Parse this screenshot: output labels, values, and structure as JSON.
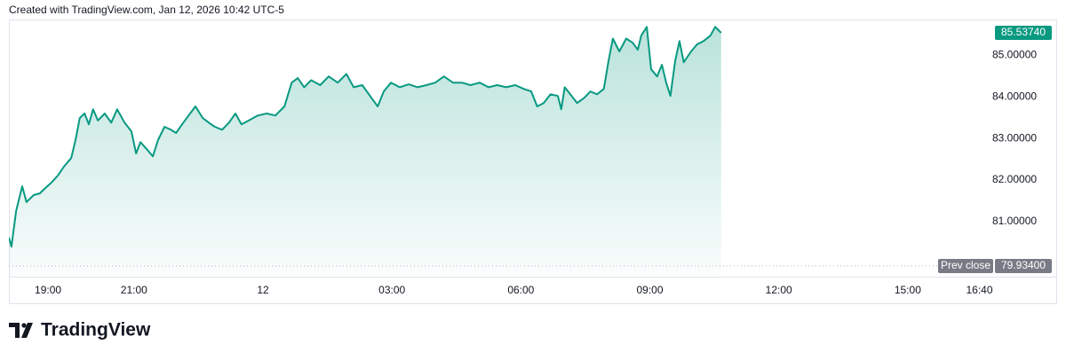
{
  "header": "Created with TradingView.com, Jan 12, 2026 10:42 UTC-5",
  "footer": {
    "brand": "TradingView"
  },
  "chart_data": {
    "type": "area",
    "color": "#089981",
    "grid": false,
    "x": [
      18.09,
      18.15,
      18.26,
      18.4,
      18.5,
      18.67,
      18.81,
      18.92,
      19.08,
      19.23,
      19.37,
      19.54,
      19.64,
      19.74,
      19.85,
      19.95,
      20.05,
      20.16,
      20.32,
      20.47,
      20.61,
      20.78,
      20.94,
      21.05,
      21.15,
      21.3,
      21.44,
      21.56,
      21.71,
      21.86,
      21.98,
      22.12,
      22.27,
      22.43,
      22.6,
      22.74,
      22.88,
      23.05,
      23.21,
      23.36,
      23.5,
      23.67,
      23.88,
      24.09,
      24.29,
      24.5,
      24.67,
      24.81,
      24.96,
      25.12,
      25.33,
      25.53,
      25.74,
      25.94,
      26.11,
      26.31,
      26.52,
      26.67,
      26.81,
      26.98,
      27.18,
      27.39,
      27.6,
      27.8,
      28.01,
      28.21,
      28.42,
      28.63,
      28.83,
      29.04,
      29.25,
      29.45,
      29.66,
      29.87,
      30.07,
      30.24,
      30.38,
      30.53,
      30.69,
      30.86,
      30.94,
      31.02,
      31.15,
      31.31,
      31.48,
      31.62,
      31.77,
      31.93,
      32.04,
      32.14,
      32.29,
      32.45,
      32.6,
      32.72,
      32.8,
      32.93,
      33.03,
      33.17,
      33.28,
      33.38,
      33.48,
      33.59,
      33.69,
      33.79,
      33.96,
      34.1,
      34.25,
      34.41,
      34.52,
      34.66
    ],
    "values": [
      80.62,
      80.4,
      81.26,
      81.85,
      81.47,
      81.64,
      81.68,
      81.79,
      81.94,
      82.11,
      82.32,
      82.53,
      82.96,
      83.49,
      83.6,
      83.34,
      83.7,
      83.43,
      83.6,
      83.38,
      83.7,
      83.38,
      83.17,
      82.64,
      82.91,
      82.74,
      82.57,
      82.96,
      83.28,
      83.21,
      83.13,
      83.34,
      83.55,
      83.77,
      83.49,
      83.38,
      83.28,
      83.21,
      83.38,
      83.6,
      83.34,
      83.43,
      83.55,
      83.6,
      83.55,
      83.77,
      84.34,
      84.45,
      84.23,
      84.4,
      84.28,
      84.49,
      84.34,
      84.55,
      84.23,
      84.28,
      83.98,
      83.77,
      84.13,
      84.34,
      84.23,
      84.3,
      84.23,
      84.28,
      84.34,
      84.49,
      84.34,
      84.34,
      84.28,
      84.34,
      84.23,
      84.28,
      84.23,
      84.28,
      84.19,
      84.13,
      83.77,
      83.85,
      84.06,
      84.02,
      83.7,
      84.23,
      84.06,
      83.85,
      83.98,
      84.13,
      84.06,
      84.19,
      84.87,
      85.4,
      85.09,
      85.4,
      85.3,
      85.13,
      85.47,
      85.68,
      84.66,
      84.49,
      84.77,
      84.34,
      84.02,
      84.87,
      85.34,
      84.83,
      85.09,
      85.26,
      85.34,
      85.47,
      85.68,
      85.5374
    ],
    "xlim": [
      18.09,
      41.4
    ],
    "ylim": [
      79.7,
      85.9
    ],
    "xticks": [
      {
        "value": 19,
        "label": "19:00"
      },
      {
        "value": 21,
        "label": "21:00"
      },
      {
        "value": 24,
        "label": "12"
      },
      {
        "value": 27,
        "label": "03:00"
      },
      {
        "value": 30,
        "label": "06:00"
      },
      {
        "value": 33,
        "label": "09:00"
      },
      {
        "value": 36,
        "label": "12:00"
      },
      {
        "value": 39,
        "label": "15:00"
      },
      {
        "value": 40.667,
        "label": "16:40"
      }
    ],
    "yticks": [
      {
        "value": 81,
        "label": "81.00000"
      },
      {
        "value": 82,
        "label": "82.00000"
      },
      {
        "value": 83,
        "label": "83.00000"
      },
      {
        "value": 84,
        "label": "84.00000"
      },
      {
        "value": 85,
        "label": "85.00000"
      }
    ],
    "last_price": {
      "value": 85.5374,
      "label": "85.53740"
    },
    "prev_close": {
      "name": "Prev close",
      "value": 79.934,
      "label": "79.93400"
    }
  }
}
